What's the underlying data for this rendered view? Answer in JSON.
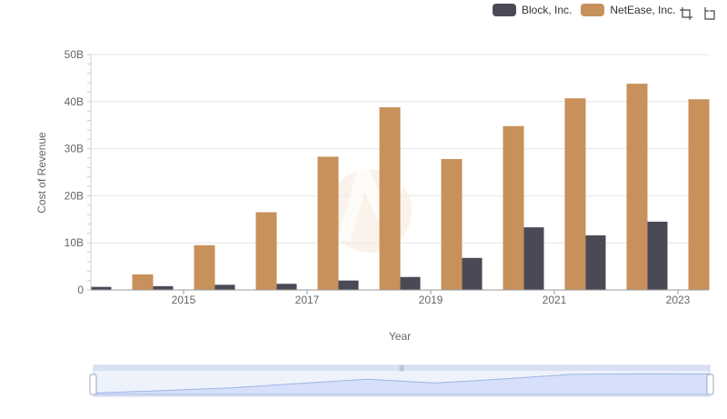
{
  "chart_data": {
    "type": "bar",
    "x": [
      2014,
      2015,
      2016,
      2017,
      2018,
      2019,
      2020,
      2021,
      2022,
      2023
    ],
    "series": [
      {
        "name": "Block, Inc.",
        "color": "#4a4a57",
        "values": [
          0.65,
          0.8,
          1.1,
          1.3,
          2.0,
          2.75,
          6.8,
          13.3,
          11.6,
          14.5
        ]
      },
      {
        "name": "NetEase, Inc.",
        "color": "#c8905b",
        "values": [
          3.3,
          9.5,
          16.5,
          28.3,
          38.8,
          27.8,
          34.8,
          40.7,
          43.8,
          40.5
        ]
      }
    ],
    "xticks": [
      "2015",
      "2017",
      "2019",
      "2021",
      "2023"
    ],
    "yticks": [
      "0",
      "10B",
      "20B",
      "30B",
      "40B",
      "50B"
    ],
    "ylim": [
      0,
      50
    ],
    "xlabel": "Year",
    "ylabel": "Cost of Revenue",
    "legend_position": "top-right"
  }
}
